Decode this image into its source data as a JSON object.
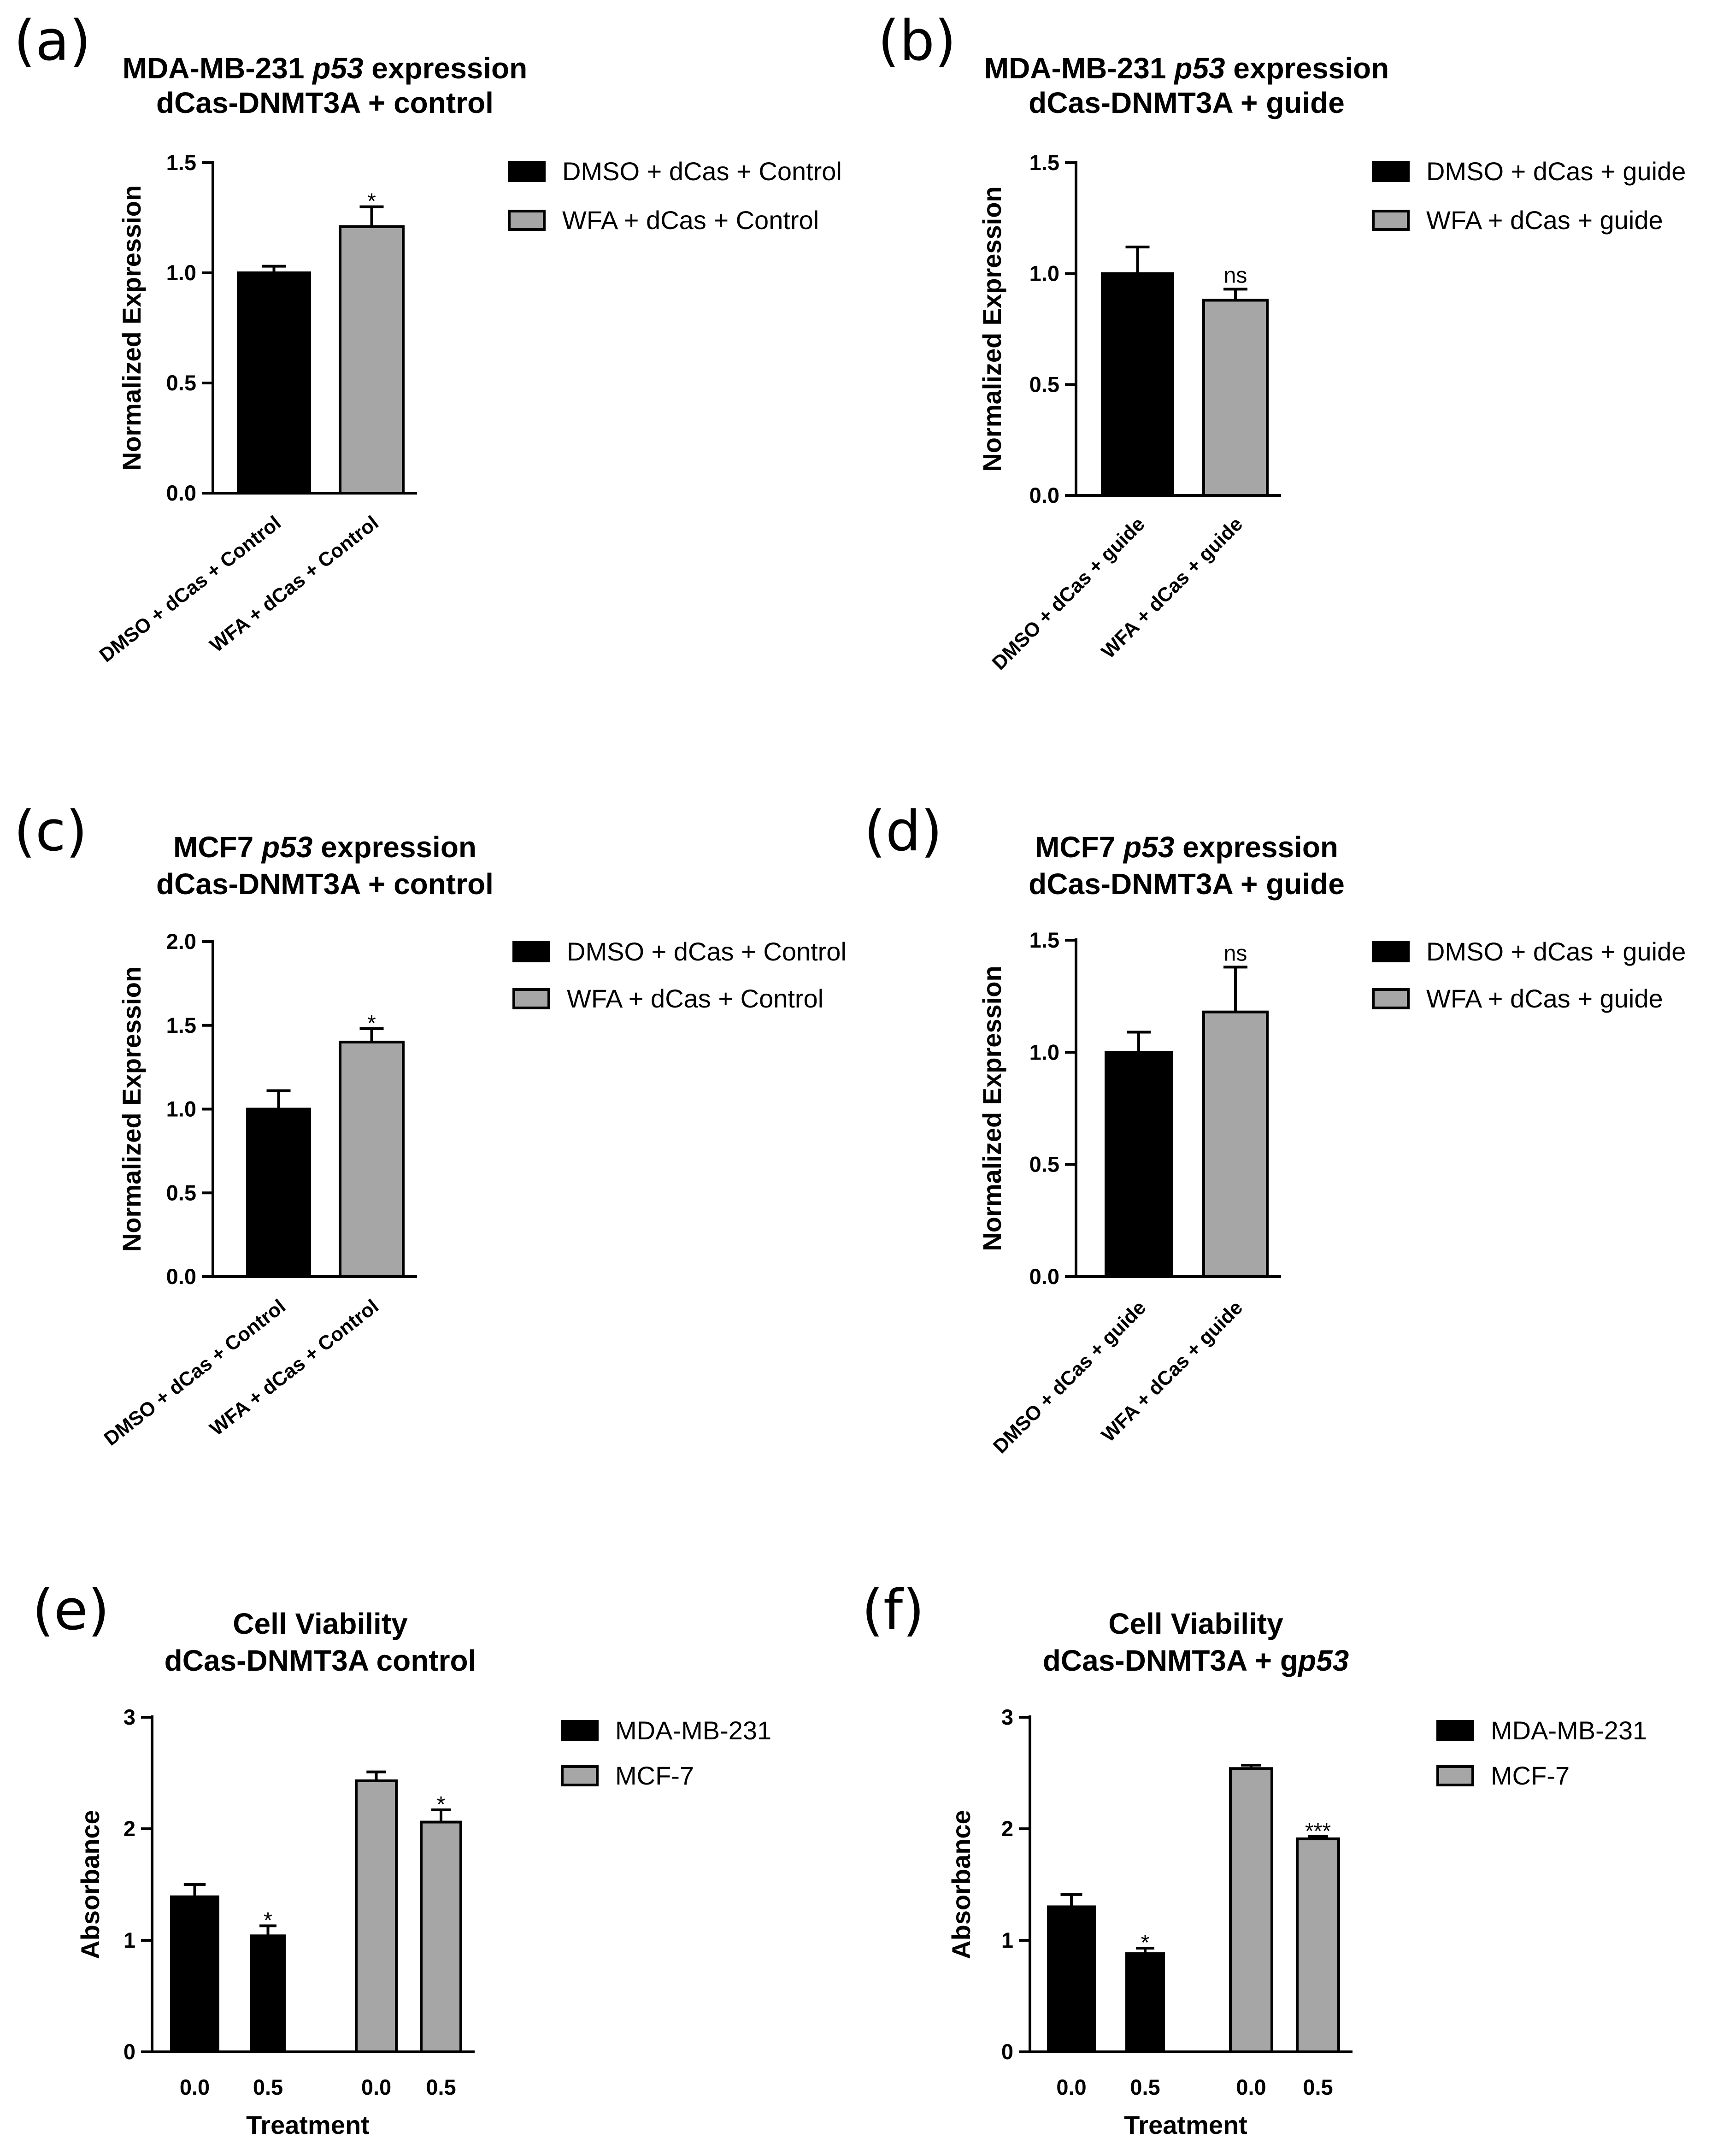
{
  "colors": {
    "black_bar": "#000000",
    "grey_bar": "#a6a6a6",
    "axis": "#000000"
  },
  "chart_data": [
    {
      "panel": "(a)",
      "type": "bar",
      "title_parts": [
        "MDA-MB-231 ",
        "p53",
        " expression"
      ],
      "title_line2": "dCas-DNMT3A + control",
      "ylabel": "Normalized Expression",
      "xlabel": "",
      "ylim": [
        0,
        1.5
      ],
      "yticks": [
        "0.0",
        "0.5",
        "1.0",
        "1.5"
      ],
      "categories": [
        "DMSO + dCas + Control",
        "WFA + dCas + Control"
      ],
      "values": [
        1.0,
        1.21
      ],
      "errors": [
        0.03,
        0.09
      ],
      "bar_colors": [
        "#000000",
        "#a6a6a6"
      ],
      "significance": [
        "",
        "*"
      ],
      "legend": [
        {
          "label": "DMSO + dCas + Control",
          "color": "#000000"
        },
        {
          "label": "WFA + dCas + Control",
          "color": "#a6a6a6"
        }
      ]
    },
    {
      "panel": "(b)",
      "type": "bar",
      "title_parts": [
        "MDA-MB-231 ",
        "p53",
        " expression"
      ],
      "title_line2": "dCas-DNMT3A + guide",
      "ylabel": "Normalized Expression",
      "xlabel": "",
      "ylim": [
        0,
        1.5
      ],
      "yticks": [
        "0.0",
        "0.5",
        "1.0",
        "1.5"
      ],
      "categories": [
        "DMSO + dCas + guide",
        "WFA + dCas + guide"
      ],
      "values": [
        1.0,
        0.88
      ],
      "errors": [
        0.12,
        0.05
      ],
      "bar_colors": [
        "#000000",
        "#a6a6a6"
      ],
      "significance": [
        "",
        "ns"
      ],
      "legend": [
        {
          "label": "DMSO + dCas + guide",
          "color": "#000000"
        },
        {
          "label": "WFA + dCas + guide",
          "color": "#a6a6a6"
        }
      ]
    },
    {
      "panel": "(c)",
      "type": "bar",
      "title_parts": [
        "MCF7 ",
        "p53",
        " expression"
      ],
      "title_line2": "dCas-DNMT3A + control",
      "ylabel": "Normalized Expression",
      "xlabel": "",
      "ylim": [
        0,
        2.0
      ],
      "yticks": [
        "0.0",
        "0.5",
        "1.0",
        "1.5",
        "2.0"
      ],
      "categories": [
        "DMSO + dCas + Control",
        "WFA + dCas + Control"
      ],
      "values": [
        1.0,
        1.4
      ],
      "errors": [
        0.11,
        0.08
      ],
      "bar_colors": [
        "#000000",
        "#a6a6a6"
      ],
      "significance": [
        "",
        "*"
      ],
      "legend": [
        {
          "label": "DMSO + dCas + Control",
          "color": "#000000"
        },
        {
          "label": "WFA + dCas + Control",
          "color": "#a6a6a6"
        }
      ]
    },
    {
      "panel": "(d)",
      "type": "bar",
      "title_parts": [
        "MCF7 ",
        "p53",
        " expression"
      ],
      "title_line2": "dCas-DNMT3A + guide",
      "ylabel": "Normalized Expression",
      "xlabel": "",
      "ylim": [
        0,
        1.5
      ],
      "yticks": [
        "0.0",
        "0.5",
        "1.0",
        "1.5"
      ],
      "categories": [
        "DMSO + dCas + guide",
        "WFA + dCas + guide"
      ],
      "values": [
        1.0,
        1.18
      ],
      "errors": [
        0.09,
        0.2
      ],
      "bar_colors": [
        "#000000",
        "#a6a6a6"
      ],
      "significance": [
        "",
        "ns"
      ],
      "legend": [
        {
          "label": "DMSO + dCas + guide",
          "color": "#000000"
        },
        {
          "label": "WFA + dCas + guide",
          "color": "#a6a6a6"
        }
      ]
    },
    {
      "panel": "(e)",
      "type": "bar",
      "title_parts": [
        "Cell Viability"
      ],
      "title_line2": "dCas-DNMT3A control",
      "ylabel": "Absorbance",
      "xlabel": "Treatment",
      "ylim": [
        0,
        3
      ],
      "yticks": [
        "0",
        "1",
        "2",
        "3"
      ],
      "categories": [
        "0.0",
        "0.5",
        "0.0",
        "0.5"
      ],
      "values": [
        1.39,
        1.04,
        2.43,
        2.06
      ],
      "errors": [
        0.11,
        0.09,
        0.08,
        0.11
      ],
      "bar_colors": [
        "#000000",
        "#000000",
        "#a6a6a6",
        "#a6a6a6"
      ],
      "significance": [
        "",
        "*",
        "",
        "*"
      ],
      "legend": [
        {
          "label": "MDA-MB-231",
          "color": "#000000"
        },
        {
          "label": "MCF-7",
          "color": "#a6a6a6"
        }
      ]
    },
    {
      "panel": "(f)",
      "type": "bar",
      "title_parts": [
        "Cell Viability"
      ],
      "title_line2_parts": [
        "dCas-DNMT3A + g",
        "p53"
      ],
      "ylabel": "Absorbance",
      "xlabel": "Treatment",
      "ylim": [
        0,
        3
      ],
      "yticks": [
        "0",
        "1",
        "2",
        "3"
      ],
      "categories": [
        "0.0",
        "0.5",
        "0.0",
        "0.5"
      ],
      "values": [
        1.3,
        0.88,
        2.54,
        1.91
      ],
      "errors": [
        0.11,
        0.05,
        0.03,
        0.02
      ],
      "bar_colors": [
        "#000000",
        "#000000",
        "#a6a6a6",
        "#a6a6a6"
      ],
      "significance": [
        "",
        "*",
        "",
        "***"
      ],
      "legend": [
        {
          "label": "MDA-MB-231",
          "color": "#000000"
        },
        {
          "label": "MCF-7",
          "color": "#a6a6a6"
        }
      ]
    }
  ]
}
